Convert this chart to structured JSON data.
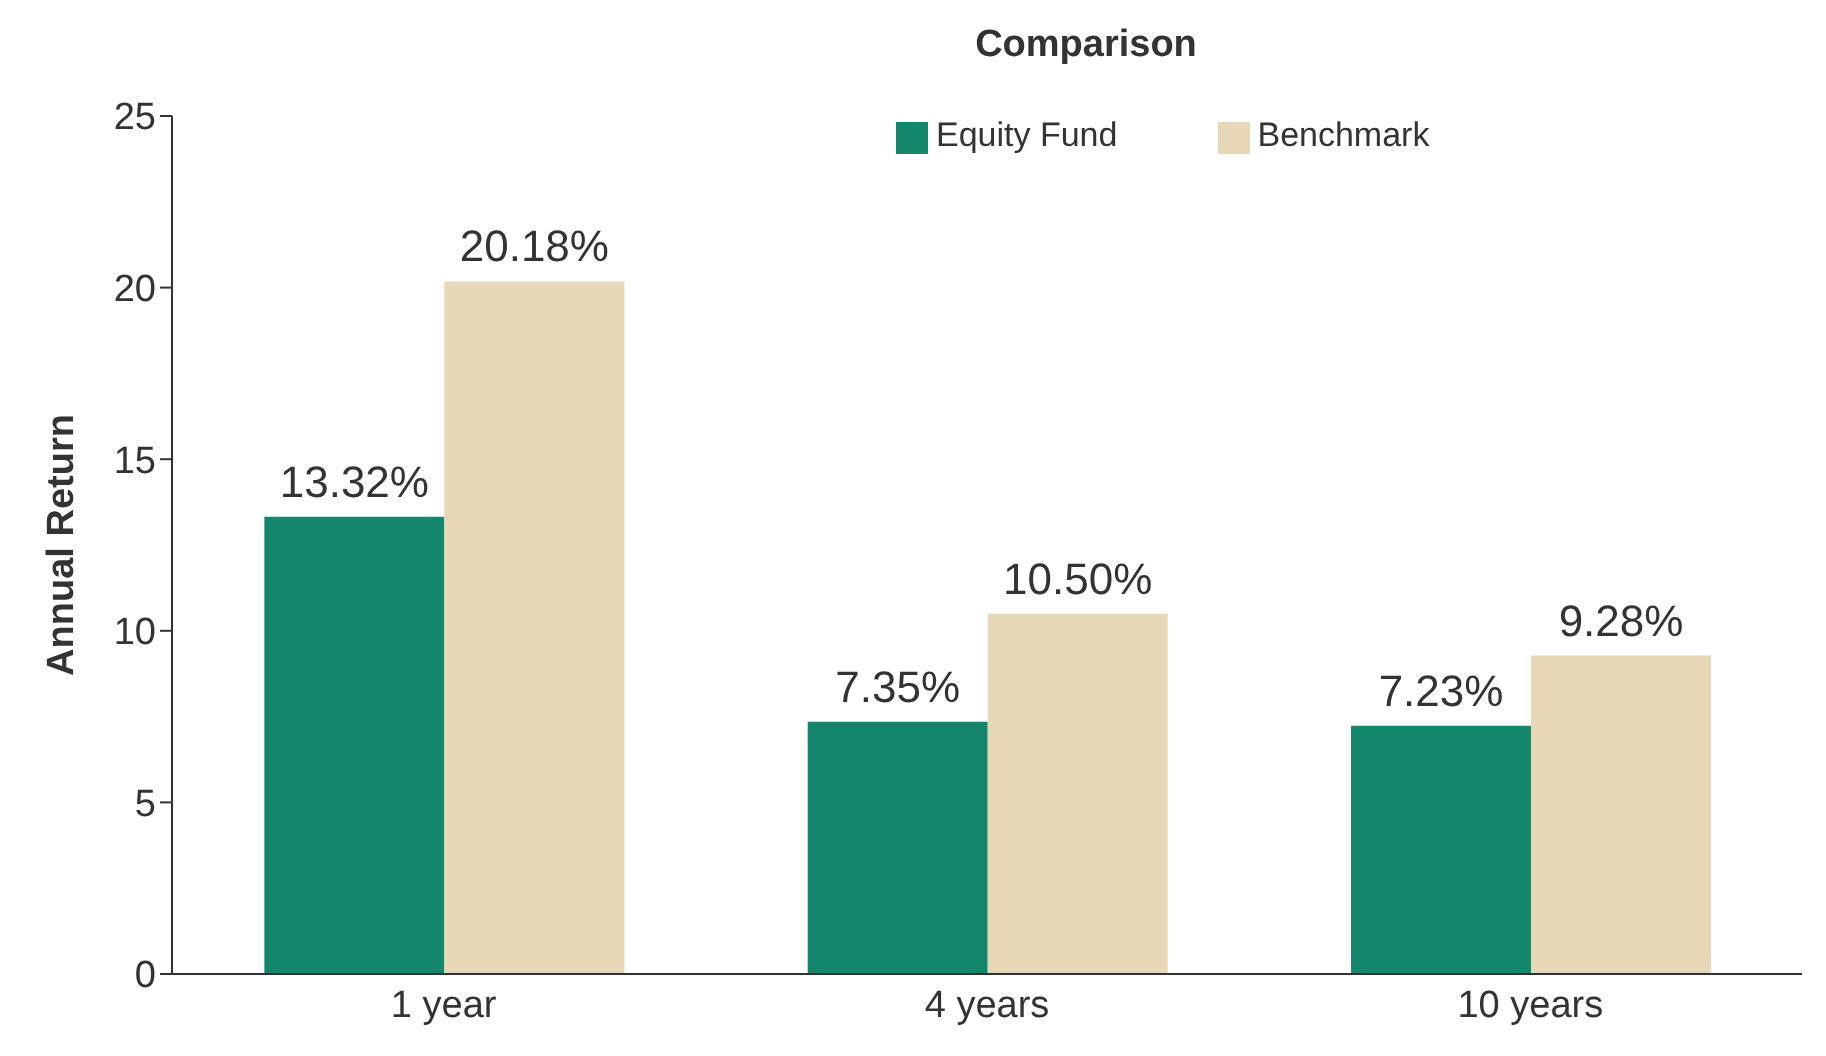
{
  "chart_data": {
    "type": "bar",
    "title": "Comparison",
    "ylabel": "Annual Return",
    "categories": [
      "1 year",
      "4 years",
      "10 years"
    ],
    "series": [
      {
        "name": "Equity Fund",
        "color": "#14866c",
        "values": [
          13.32,
          7.35,
          7.23
        ],
        "value_labels": [
          "13.32%",
          "7.35%",
          "7.23%"
        ]
      },
      {
        "name": "Benchmark",
        "color": "#e6d7b6",
        "values": [
          20.18,
          10.5,
          9.28
        ],
        "value_labels": [
          "20.18%",
          "10.50%",
          "9.28%"
        ]
      }
    ],
    "ylim": [
      0,
      25
    ],
    "yticks": [
      0,
      5,
      10,
      15,
      20,
      25
    ],
    "grid": false,
    "legend": "top"
  }
}
